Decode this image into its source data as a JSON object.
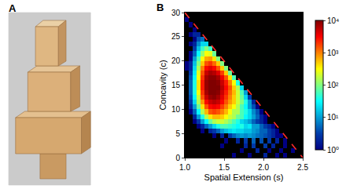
{
  "panel_labels": [
    "A",
    "B"
  ],
  "chart_data": {
    "type": "heatmap",
    "x_label": "Spatial Extension (s)",
    "y_label": "Concavity (c)",
    "xlim": [
      1.0,
      2.5
    ],
    "ylim": [
      0,
      30
    ],
    "xticks": [
      {
        "value": 1.0,
        "label": "1.0"
      },
      {
        "value": 1.5,
        "label": "1.5"
      },
      {
        "value": 2.0,
        "label": "2.0"
      },
      {
        "value": 2.5,
        "label": "2.5"
      }
    ],
    "yticks": [
      0,
      5,
      10,
      15,
      20,
      25,
      30
    ],
    "x": [
      1.025,
      1.075,
      1.125,
      1.175,
      1.225,
      1.275,
      1.325,
      1.375,
      1.425,
      1.475,
      1.525,
      1.575,
      1.625,
      1.675,
      1.725,
      1.775,
      1.825,
      1.875,
      1.925,
      1.975,
      2.025,
      2.075,
      2.125,
      2.175,
      2.225,
      2.275,
      2.325,
      2.375,
      2.425,
      2.475
    ],
    "y": [
      0.5,
      1.5,
      2.5,
      3.5,
      4.5,
      5.5,
      6.5,
      7.5,
      8.5,
      9.5,
      10.5,
      11.5,
      12.5,
      13.5,
      14.5,
      15.5,
      16.5,
      17.5,
      18.5,
      19.5,
      20.5,
      21.5,
      22.5,
      23.5,
      24.5,
      25.5,
      26.5,
      27.5,
      28.5,
      29.5
    ],
    "z": [
      [
        0,
        0,
        0,
        0,
        0,
        0,
        0,
        0,
        0,
        0,
        0,
        0,
        1,
        0,
        0,
        0,
        1,
        0,
        0,
        0,
        2,
        0,
        0,
        1,
        0,
        1,
        0,
        0,
        0,
        0
      ],
      [
        0,
        0,
        0,
        0,
        0,
        0,
        0,
        0,
        0,
        0,
        0,
        0,
        0,
        0,
        1,
        0,
        0,
        0,
        2,
        0,
        0,
        1,
        0,
        0,
        1,
        0,
        0,
        1,
        0,
        0
      ],
      [
        0,
        0,
        0,
        0,
        0,
        0,
        0,
        0,
        0,
        1,
        0,
        0,
        0,
        0,
        0,
        2,
        0,
        3,
        0,
        0,
        3,
        0,
        2,
        0,
        0,
        1,
        0,
        0,
        0,
        0
      ],
      [
        0,
        0,
        0,
        0,
        0,
        0,
        0,
        0,
        0,
        0,
        1,
        0,
        0,
        2,
        0,
        3,
        0,
        5,
        0,
        4,
        0,
        3,
        0,
        2,
        0,
        1,
        0,
        0,
        0,
        0
      ],
      [
        0,
        0,
        0,
        0,
        0,
        0,
        0,
        1,
        0,
        2,
        0,
        3,
        5,
        8,
        10,
        8,
        10,
        8,
        6,
        5,
        4,
        3,
        2,
        1,
        1,
        0,
        0,
        0,
        0,
        0
      ],
      [
        0,
        0,
        0,
        0,
        1,
        0,
        2,
        3,
        5,
        10,
        15,
        20,
        25,
        20,
        20,
        15,
        15,
        10,
        8,
        5,
        5,
        3,
        2,
        1,
        0,
        0,
        0,
        0,
        0,
        0
      ],
      [
        0,
        0,
        0,
        1,
        2,
        5,
        10,
        20,
        40,
        60,
        60,
        50,
        40,
        30,
        40,
        20,
        25,
        10,
        10,
        5,
        3,
        2,
        1,
        0,
        0,
        0,
        0,
        0,
        0,
        0
      ],
      [
        0,
        0,
        1,
        3,
        10,
        30,
        80,
        150,
        200,
        200,
        150,
        100,
        60,
        40,
        20,
        15,
        10,
        5,
        3,
        2,
        1,
        0,
        0,
        0,
        0,
        0,
        0,
        0,
        0,
        0
      ],
      [
        0,
        0,
        2,
        10,
        40,
        150,
        400,
        600,
        600,
        500,
        300,
        200,
        150,
        80,
        60,
        30,
        20,
        10,
        5,
        2,
        1,
        0,
        0,
        0,
        0,
        0,
        0,
        0,
        0,
        0
      ],
      [
        0,
        1,
        5,
        30,
        150,
        600,
        1500,
        1800,
        1500,
        1000,
        600,
        300,
        150,
        150,
        60,
        40,
        20,
        8,
        4,
        1,
        0,
        0,
        0,
        0,
        0,
        0,
        0,
        0,
        0,
        0
      ],
      [
        0,
        2,
        10,
        80,
        400,
        1500,
        3000,
        3500,
        3000,
        1800,
        1000,
        500,
        300,
        150,
        60,
        30,
        10,
        4,
        1,
        0,
        0,
        0,
        0,
        0,
        0,
        0,
        0,
        0,
        0,
        0
      ],
      [
        0,
        3,
        20,
        150,
        800,
        3000,
        5000,
        6000,
        5000,
        3000,
        1500,
        800,
        500,
        200,
        100,
        40,
        10,
        2,
        0,
        0,
        0,
        0,
        0,
        0,
        0,
        0,
        0,
        0,
        0,
        0
      ],
      [
        0,
        4,
        30,
        200,
        1500,
        5000,
        8000,
        9000,
        7000,
        4000,
        2000,
        1000,
        500,
        200,
        80,
        20,
        3,
        0,
        0,
        0,
        0,
        0,
        0,
        0,
        0,
        0,
        0,
        0,
        0,
        0
      ],
      [
        0,
        5,
        40,
        300,
        2000,
        7000,
        10000,
        10000,
        9000,
        5000,
        2500,
        1200,
        600,
        200,
        60,
        10,
        0,
        0,
        0,
        0,
        0,
        0,
        0,
        0,
        0,
        0,
        0,
        0,
        0,
        0
      ],
      [
        0,
        5,
        40,
        400,
        2500,
        8000,
        10000,
        10000,
        10000,
        6000,
        3000,
        1500,
        500,
        150,
        20,
        0,
        0,
        0,
        0,
        0,
        0,
        0,
        0,
        0,
        0,
        0,
        0,
        0,
        0,
        0
      ],
      [
        0,
        5,
        40,
        400,
        2500,
        8000,
        10000,
        10000,
        9000,
        5000,
        2500,
        1000,
        300,
        40,
        0,
        0,
        0,
        0,
        0,
        0,
        0,
        0,
        0,
        0,
        0,
        0,
        0,
        0,
        0,
        0
      ],
      [
        0,
        4,
        30,
        300,
        2000,
        7000,
        9000,
        9000,
        7000,
        3500,
        1500,
        400,
        60,
        0,
        0,
        0,
        0,
        0,
        0,
        0,
        0,
        0,
        0,
        0,
        0,
        0,
        0,
        0,
        0,
        0
      ],
      [
        0,
        3,
        25,
        250,
        1500,
        5000,
        7000,
        6000,
        4000,
        1800,
        500,
        80,
        0,
        0,
        0,
        0,
        0,
        0,
        0,
        0,
        0,
        0,
        0,
        0,
        0,
        0,
        0,
        0,
        0,
        0
      ],
      [
        1,
        2,
        20,
        150,
        1000,
        3000,
        4000,
        3000,
        1500,
        500,
        100,
        0,
        0,
        0,
        0,
        0,
        0,
        0,
        0,
        0,
        0,
        0,
        0,
        0,
        0,
        0,
        0,
        0,
        0,
        0
      ],
      [
        1,
        2,
        15,
        100,
        500,
        1500,
        2000,
        1200,
        500,
        100,
        0,
        0,
        0,
        0,
        0,
        0,
        0,
        0,
        0,
        0,
        0,
        0,
        0,
        0,
        0,
        0,
        0,
        0,
        0,
        0
      ],
      [
        0,
        1,
        10,
        60,
        300,
        700,
        800,
        400,
        100,
        0,
        0,
        0,
        0,
        0,
        0,
        0,
        0,
        0,
        0,
        0,
        0,
        0,
        0,
        0,
        0,
        0,
        0,
        0,
        0,
        0
      ],
      [
        0,
        1,
        5,
        30,
        120,
        300,
        250,
        80,
        0,
        0,
        0,
        0,
        0,
        0,
        0,
        0,
        0,
        0,
        0,
        0,
        0,
        0,
        0,
        0,
        0,
        0,
        0,
        0,
        0,
        0
      ],
      [
        0,
        0,
        3,
        15,
        50,
        100,
        50,
        0,
        0,
        0,
        0,
        0,
        0,
        0,
        0,
        0,
        0,
        0,
        0,
        0,
        0,
        0,
        0,
        0,
        0,
        0,
        0,
        0,
        0,
        0
      ],
      [
        0,
        1,
        2,
        8,
        20,
        20,
        0,
        0,
        0,
        0,
        0,
        0,
        0,
        0,
        0,
        0,
        0,
        0,
        0,
        0,
        0,
        0,
        0,
        0,
        0,
        0,
        0,
        0,
        0,
        0
      ],
      [
        0,
        0,
        1,
        4,
        6,
        0,
        0,
        0,
        0,
        0,
        0,
        0,
        0,
        0,
        0,
        0,
        0,
        0,
        0,
        0,
        0,
        0,
        0,
        0,
        0,
        0,
        0,
        0,
        0,
        0
      ],
      [
        0,
        1,
        2,
        2,
        0,
        0,
        0,
        0,
        0,
        0,
        0,
        0,
        0,
        0,
        0,
        0,
        0,
        0,
        0,
        0,
        0,
        0,
        0,
        0,
        0,
        0,
        0,
        0,
        0,
        0
      ],
      [
        0,
        0,
        1,
        0,
        0,
        0,
        0,
        0,
        0,
        0,
        0,
        0,
        0,
        0,
        0,
        0,
        0,
        0,
        0,
        0,
        0,
        0,
        0,
        0,
        0,
        0,
        0,
        0,
        0,
        0
      ],
      [
        0,
        1,
        0,
        0,
        0,
        0,
        0,
        0,
        0,
        0,
        0,
        0,
        0,
        0,
        0,
        0,
        0,
        0,
        0,
        0,
        0,
        0,
        0,
        0,
        0,
        0,
        0,
        0,
        0,
        0
      ],
      [
        1,
        0,
        0,
        0,
        0,
        0,
        0,
        0,
        0,
        0,
        0,
        0,
        0,
        0,
        0,
        0,
        0,
        0,
        0,
        0,
        0,
        0,
        0,
        0,
        0,
        0,
        0,
        0,
        0,
        0
      ],
      [
        0,
        0,
        0,
        0,
        0,
        0,
        0,
        0,
        0,
        0,
        0,
        0,
        0,
        0,
        0,
        0,
        0,
        0,
        0,
        0,
        0,
        0,
        0,
        0,
        0,
        0,
        0,
        0,
        0,
        0
      ]
    ],
    "colorbar": {
      "range": [
        1,
        10000
      ],
      "ticks": [
        {
          "value": 1,
          "label": "10⁰"
        },
        {
          "value": 10,
          "label": "10¹"
        },
        {
          "value": 100,
          "label": "10²"
        },
        {
          "value": 1000,
          "label": "10³"
        },
        {
          "value": 10000,
          "label": "10⁴"
        }
      ]
    },
    "series": [
      {
        "type": "line",
        "x": [
          1.0,
          2.5
        ],
        "values": [
          30,
          0
        ],
        "color": "#ff2a2a",
        "line_style": "dash"
      }
    ]
  }
}
